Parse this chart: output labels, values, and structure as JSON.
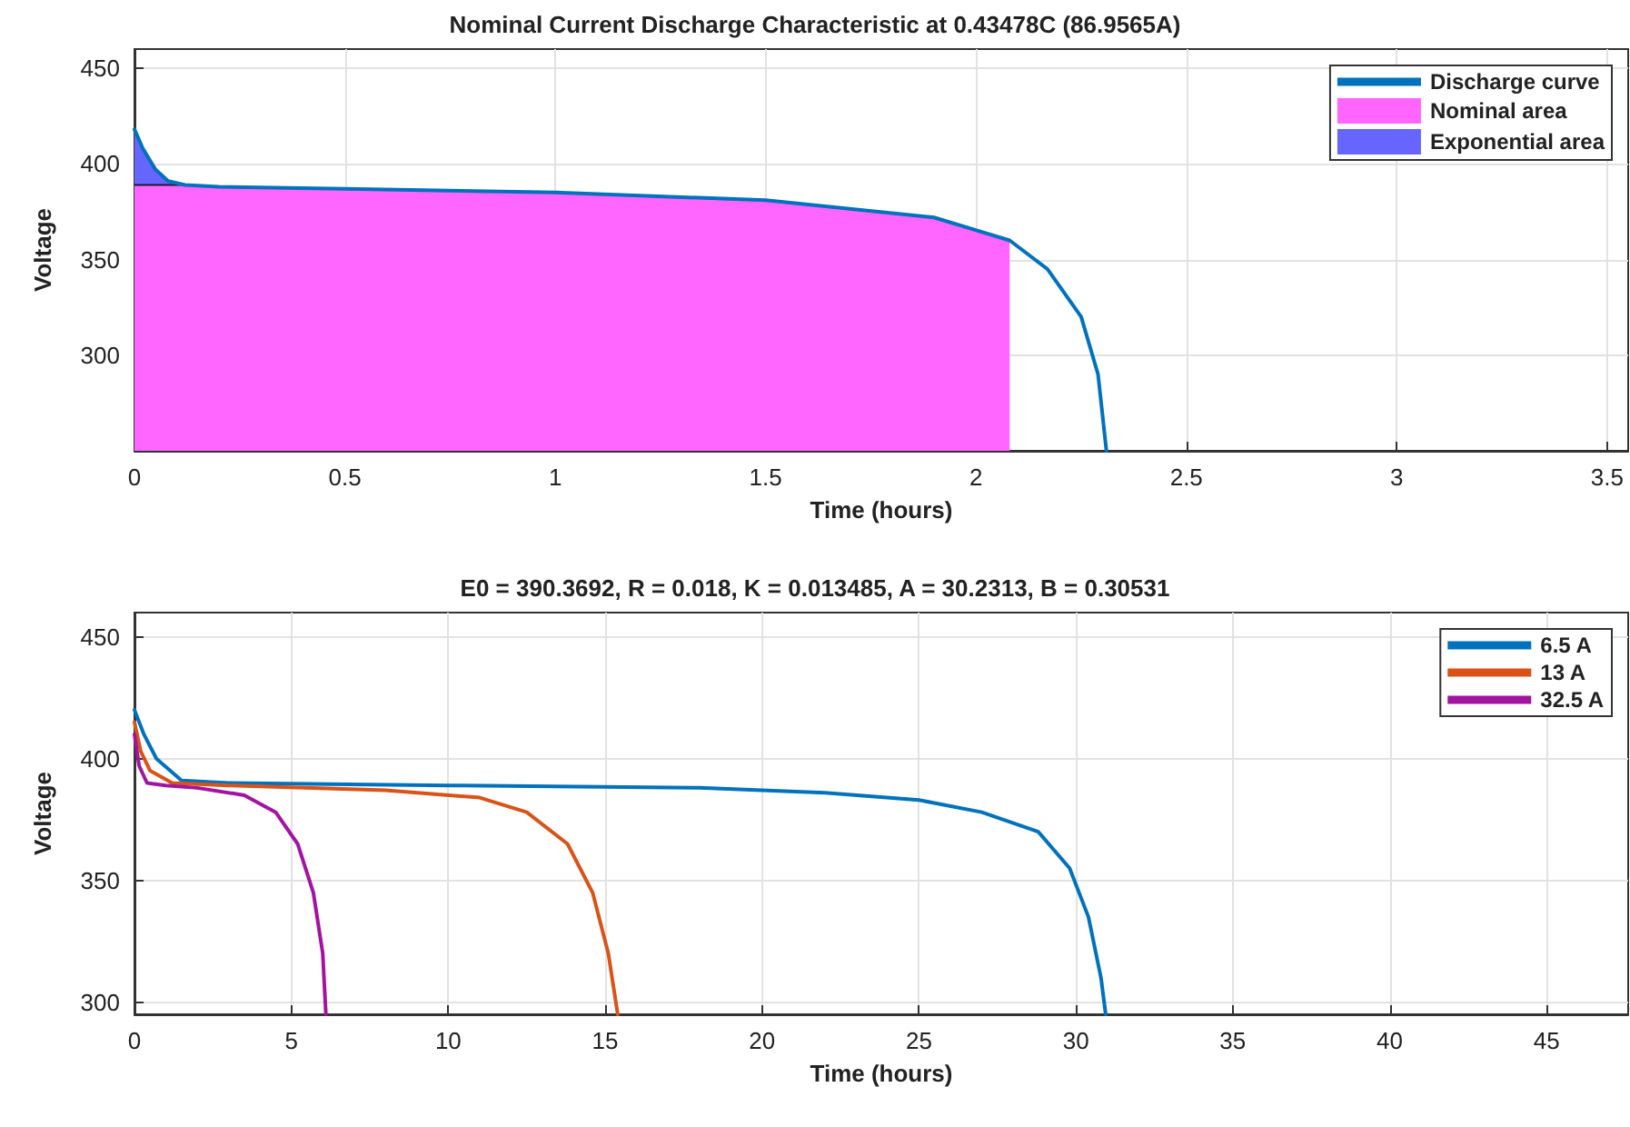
{
  "chart_data": [
    {
      "type": "line",
      "title": "Nominal Current Discharge Characteristic at 0.43478C (86.9565A)",
      "xlabel": "Time (hours)",
      "ylabel": "Voltage",
      "xlim": [
        0,
        3.55
      ],
      "xticks": [
        0,
        0.5,
        1,
        1.5,
        2,
        2.5,
        3,
        3.5
      ],
      "ylim": [
        250,
        460
      ],
      "yticks": [
        300,
        350,
        400,
        450
      ],
      "grid": true,
      "legend": "top right",
      "marker": "none",
      "line_style": "solid",
      "series": [
        {
          "name": "Discharge curve",
          "type": "line",
          "color": "#0072bd",
          "x": [
            0,
            0.02,
            0.05,
            0.08,
            0.12,
            0.2,
            0.5,
            1,
            1.5,
            1.9,
            2.08,
            2.17,
            2.25,
            2.29,
            2.31
          ],
          "values": [
            418,
            408,
            397,
            391,
            389,
            388,
            387,
            385,
            381,
            372,
            360,
            345,
            320,
            290,
            250
          ]
        },
        {
          "name": "Nominal area",
          "type": "area",
          "color": "#ff66ff",
          "x": [
            0,
            0.12,
            0.2,
            0.5,
            1,
            1.5,
            1.9,
            2.08
          ],
          "values": [
            389,
            389,
            388,
            387,
            385,
            381,
            372,
            360
          ]
        },
        {
          "name": "Exponential area",
          "type": "area",
          "color": "#6666ff",
          "x": [
            0,
            0.02,
            0.05,
            0.08,
            0.12
          ],
          "values": [
            418,
            408,
            397,
            391,
            389
          ]
        }
      ]
    },
    {
      "type": "line",
      "title": "E0 = 390.3692, R = 0.018, K = 0.013485, A = 30.2313, B = 0.30531",
      "xlabel": "Time (hours)",
      "ylabel": "Voltage",
      "xlim": [
        0,
        47.6
      ],
      "xticks": [
        0,
        5,
        10,
        15,
        20,
        25,
        30,
        35,
        40,
        45
      ],
      "ylim": [
        295,
        460
      ],
      "yticks": [
        300,
        350,
        400,
        450
      ],
      "grid": true,
      "legend": "top right",
      "marker": "none",
      "line_style": "solid",
      "series": [
        {
          "name": "6.5 A",
          "color": "#0072bd",
          "x": [
            0,
            0.3,
            0.7,
            1.5,
            3,
            10,
            18,
            22,
            25,
            27,
            28.8,
            29.8,
            30.4,
            30.8,
            30.95
          ],
          "values": [
            420,
            410,
            400,
            391,
            390,
            389,
            388,
            386,
            383,
            378,
            370,
            355,
            335,
            310,
            295
          ]
        },
        {
          "name": "13 A",
          "color": "#d95319",
          "x": [
            0,
            0.2,
            0.5,
            1.2,
            3,
            8,
            11,
            12.5,
            13.8,
            14.6,
            15.1,
            15.4
          ],
          "values": [
            415,
            403,
            395,
            390,
            389,
            387,
            384,
            378,
            365,
            345,
            320,
            295
          ]
        },
        {
          "name": "32.5 A",
          "color": "#a2149f",
          "x": [
            0,
            0.15,
            0.4,
            1,
            2,
            3.5,
            4.5,
            5.2,
            5.7,
            6,
            6.1
          ],
          "values": [
            410,
            397,
            390,
            389,
            388,
            385,
            378,
            365,
            345,
            320,
            295
          ]
        }
      ]
    }
  ]
}
